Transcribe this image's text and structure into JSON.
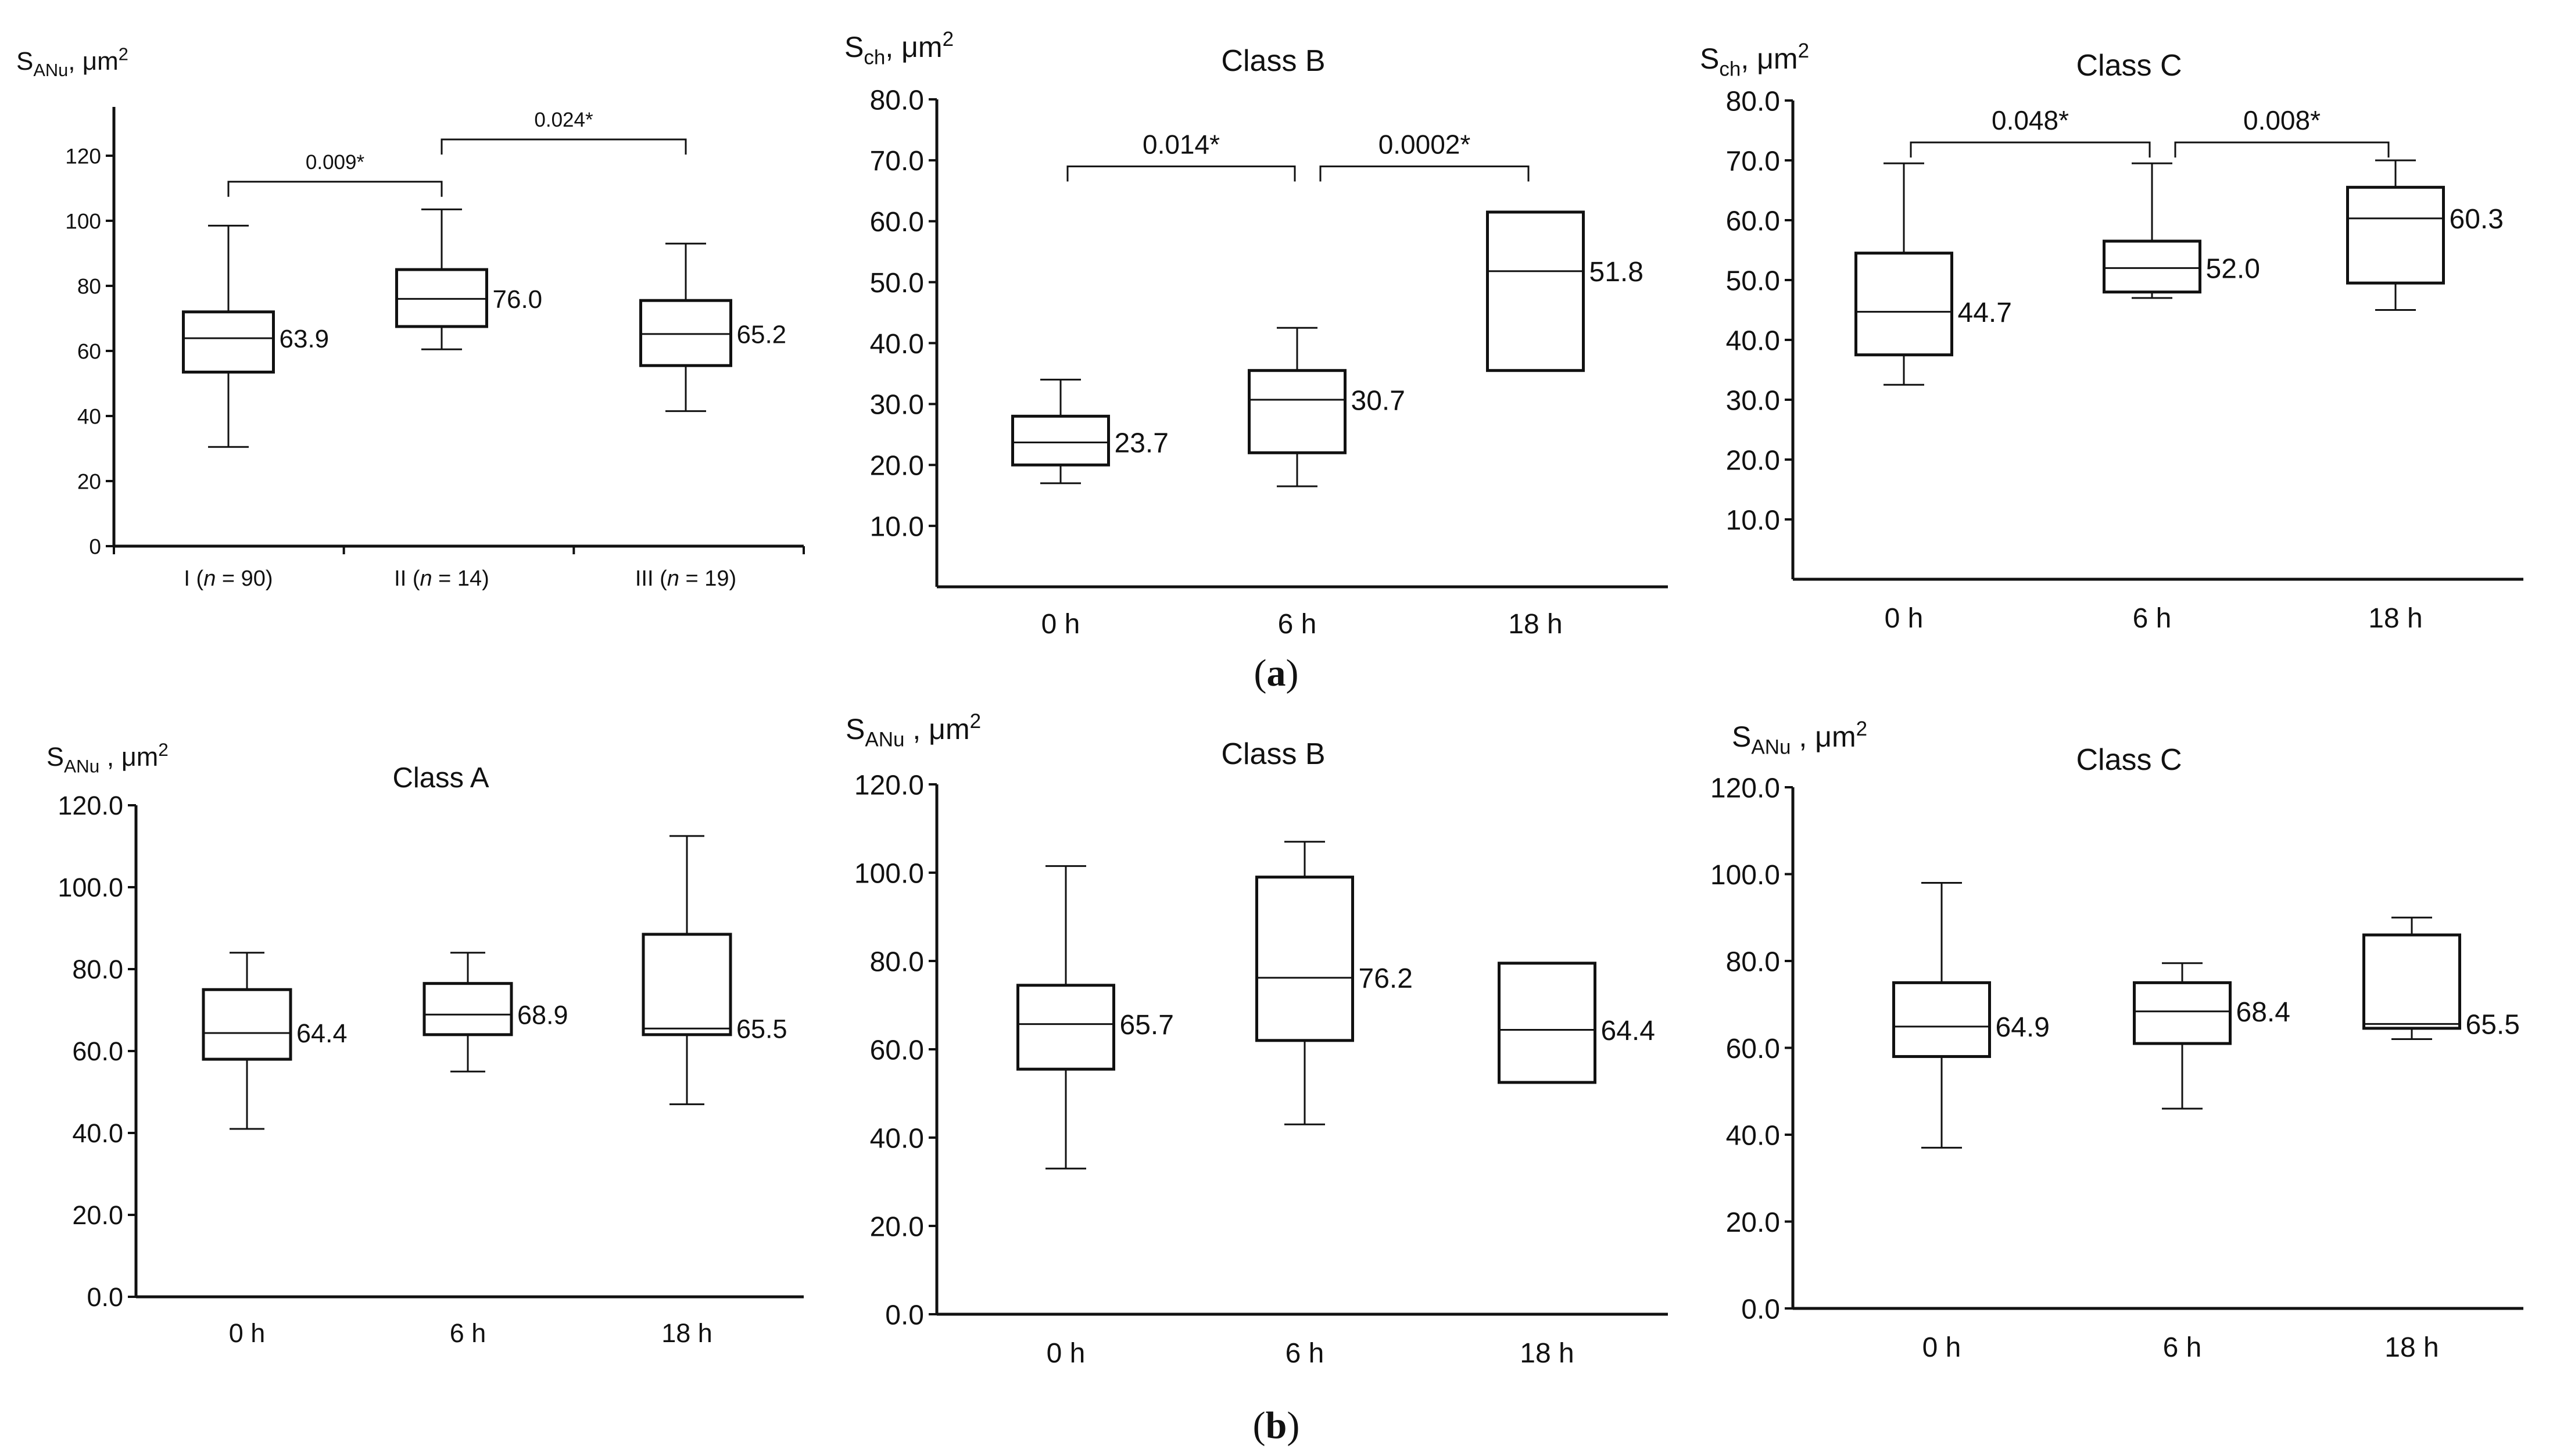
{
  "figure": {
    "panel_labels": [
      {
        "key": "a",
        "open": "(",
        "letter": "a",
        "close": ")"
      },
      {
        "key": "b",
        "open": "(",
        "letter": "b",
        "close": ")"
      }
    ]
  },
  "chart_data": [
    {
      "id": "a1",
      "type": "box",
      "row": "a",
      "col": 0,
      "title": "",
      "ylabel": {
        "symbol": "S",
        "sub": "ANu",
        "sep": ",",
        "unit": "μm",
        "sup": "2"
      },
      "ylim": [
        0,
        135
      ],
      "yticks": [
        0,
        20,
        40,
        60,
        80,
        100,
        120
      ],
      "tick_decimals": 0,
      "categories": [
        {
          "label": "I (",
          "n": "n",
          "rest": " = 90)"
        },
        {
          "label": "II (",
          "n": "n",
          "rest": " = 14)"
        },
        {
          "label": "III (",
          "n": "n",
          "rest": " = 19)"
        }
      ],
      "boxes": [
        {
          "min": 30.5,
          "q1": 53.5,
          "median": 63.9,
          "q3": 72,
          "max": 98.5,
          "label": "63.9"
        },
        {
          "min": 60.5,
          "q1": 67.5,
          "median": 76.0,
          "q3": 85,
          "max": 103.5,
          "label": "76.0"
        },
        {
          "min": 41.5,
          "q1": 55.5,
          "median": 65.2,
          "q3": 75.5,
          "max": 93,
          "label": "65.2"
        }
      ],
      "brackets": [
        {
          "from": 0,
          "to": 1,
          "y": 112,
          "label": "0.009*"
        },
        {
          "from": 1,
          "to": 2,
          "y": 125,
          "label": "0.024*"
        }
      ]
    },
    {
      "id": "a2",
      "type": "box",
      "row": "a",
      "col": 1,
      "title": "Class B",
      "ylabel": {
        "symbol": "S",
        "sub": "ch",
        "sep": ",",
        "unit": "μm",
        "sup": "2"
      },
      "ylim": [
        0,
        80
      ],
      "yticks": [
        10,
        20,
        30,
        40,
        50,
        60,
        70,
        80
      ],
      "tick_decimals": 1,
      "categories": [
        {
          "label": "0 h"
        },
        {
          "label": "6 h"
        },
        {
          "label": "18 h"
        }
      ],
      "boxes": [
        {
          "min": 17,
          "q1": 20,
          "median": 23.7,
          "q3": 28,
          "max": 34,
          "label": "23.7"
        },
        {
          "min": 16.5,
          "q1": 22,
          "median": 30.7,
          "q3": 35.5,
          "max": 42.5,
          "label": "30.7"
        },
        {
          "min": null,
          "q1": 35.5,
          "median": 51.8,
          "q3": 61.5,
          "max": null,
          "label": "51.8"
        }
      ],
      "brackets": [
        {
          "from": 0,
          "to": 1,
          "y": 69,
          "label": "0.014*"
        },
        {
          "from": 1,
          "to": 2,
          "y": 69,
          "label": "0.0002*"
        }
      ]
    },
    {
      "id": "a3",
      "type": "box",
      "row": "a",
      "col": 2,
      "title": "Class C",
      "ylabel": {
        "symbol": "S",
        "sub": "ch",
        "sep": ",",
        "unit": "μm",
        "sup": "2"
      },
      "ylim": [
        0,
        80
      ],
      "yticks": [
        10,
        20,
        30,
        40,
        50,
        60,
        70,
        80
      ],
      "tick_decimals": 1,
      "categories": [
        {
          "label": "0 h"
        },
        {
          "label": "6 h"
        },
        {
          "label": "18 h"
        }
      ],
      "boxes": [
        {
          "min": 32.5,
          "q1": 37.5,
          "median": 44.7,
          "q3": 54.5,
          "max": 69.5,
          "label": "44.7"
        },
        {
          "min": 47,
          "q1": 48,
          "median": 52.0,
          "q3": 56.5,
          "max": 69.5,
          "label": "52.0"
        },
        {
          "min": 45,
          "q1": 49.5,
          "median": 60.3,
          "q3": 65.5,
          "max": 70,
          "label": "60.3"
        }
      ],
      "brackets": [
        {
          "from": 0,
          "to": 1,
          "y": 73,
          "label": "0.048*"
        },
        {
          "from": 1,
          "to": 2,
          "y": 73,
          "label": "0.008*"
        }
      ]
    },
    {
      "id": "b1",
      "type": "box",
      "row": "b",
      "col": 0,
      "title": "Class A",
      "ylabel": {
        "symbol": "S",
        "sub": "ANu",
        "sep": " ,",
        "unit": "μm",
        "sup": "2"
      },
      "ylim": [
        0,
        120
      ],
      "yticks": [
        0,
        20,
        40,
        60,
        80,
        100,
        120
      ],
      "tick_decimals": 1,
      "categories": [
        {
          "label": "0 h"
        },
        {
          "label": "6 h"
        },
        {
          "label": "18 h"
        }
      ],
      "boxes": [
        {
          "min": 41,
          "q1": 58,
          "median": 64.4,
          "q3": 75,
          "max": 84,
          "label": "64.4"
        },
        {
          "min": 55,
          "q1": 64,
          "median": 68.9,
          "q3": 76.5,
          "max": 84,
          "label": "68.9"
        },
        {
          "min": 47,
          "q1": 64,
          "median": 65.5,
          "q3": 88.5,
          "max": 112.5,
          "label": "65.5"
        }
      ],
      "brackets": []
    },
    {
      "id": "b2",
      "type": "box",
      "row": "b",
      "col": 1,
      "title": "Class B",
      "ylabel": {
        "symbol": "S",
        "sub": "ANu",
        "sep": " ,",
        "unit": "μm",
        "sup": "2"
      },
      "ylim": [
        0,
        120
      ],
      "yticks": [
        0,
        20,
        40,
        60,
        80,
        100,
        120
      ],
      "tick_decimals": 1,
      "categories": [
        {
          "label": "0 h"
        },
        {
          "label": "6 h"
        },
        {
          "label": "18 h"
        }
      ],
      "boxes": [
        {
          "min": 33,
          "q1": 55.5,
          "median": 65.7,
          "q3": 74.5,
          "max": 101.5,
          "label": "65.7"
        },
        {
          "min": 43,
          "q1": 62,
          "median": 76.2,
          "q3": 99,
          "max": 107,
          "label": "76.2"
        },
        {
          "min": null,
          "q1": 52.5,
          "median": 64.4,
          "q3": 79.5,
          "max": null,
          "label": "64.4"
        }
      ],
      "brackets": []
    },
    {
      "id": "b3",
      "type": "box",
      "row": "b",
      "col": 2,
      "title": "Class C",
      "ylabel": {
        "symbol": "S",
        "sub": "ANu",
        "sep": " ,",
        "unit": "μm",
        "sup": "2"
      },
      "ylim": [
        0,
        120
      ],
      "yticks": [
        0,
        20,
        40,
        60,
        80,
        100,
        120
      ],
      "tick_decimals": 1,
      "categories": [
        {
          "label": "0 h"
        },
        {
          "label": "6 h"
        },
        {
          "label": "18 h"
        }
      ],
      "boxes": [
        {
          "min": 37,
          "q1": 58,
          "median": 64.9,
          "q3": 75,
          "max": 98,
          "label": "64.9"
        },
        {
          "min": 46,
          "q1": 61,
          "median": 68.4,
          "q3": 75,
          "max": 79.5,
          "label": "68.4"
        },
        {
          "min": 62,
          "q1": 64.5,
          "median": 65.5,
          "q3": 86,
          "max": 90,
          "label": "65.5"
        }
      ],
      "brackets": []
    }
  ]
}
